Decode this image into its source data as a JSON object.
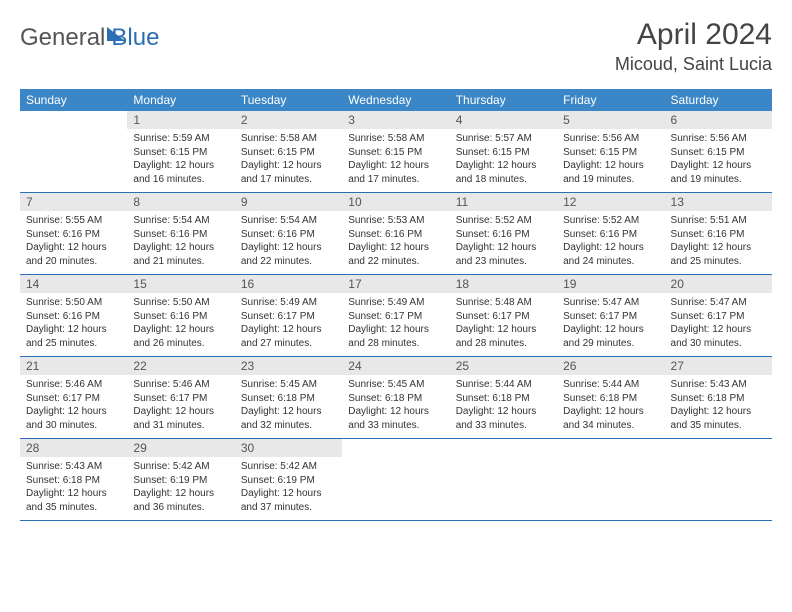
{
  "brand": {
    "part1": "General",
    "part2": "Blue"
  },
  "title": "April 2024",
  "location": "Micoud, Saint Lucia",
  "colors": {
    "header_bg": "#3b86c7",
    "header_text": "#ffffff",
    "daynum_bg": "#e8e8e8",
    "border": "#2a6fb5",
    "brand_accent": "#2a6fb5",
    "text": "#333333"
  },
  "weekdays": [
    "Sunday",
    "Monday",
    "Tuesday",
    "Wednesday",
    "Thursday",
    "Friday",
    "Saturday"
  ],
  "weeks": [
    [
      {
        "day": "",
        "sunrise": "",
        "sunset": "",
        "daylight": ""
      },
      {
        "day": "1",
        "sunrise": "Sunrise: 5:59 AM",
        "sunset": "Sunset: 6:15 PM",
        "daylight": "Daylight: 12 hours and 16 minutes."
      },
      {
        "day": "2",
        "sunrise": "Sunrise: 5:58 AM",
        "sunset": "Sunset: 6:15 PM",
        "daylight": "Daylight: 12 hours and 17 minutes."
      },
      {
        "day": "3",
        "sunrise": "Sunrise: 5:58 AM",
        "sunset": "Sunset: 6:15 PM",
        "daylight": "Daylight: 12 hours and 17 minutes."
      },
      {
        "day": "4",
        "sunrise": "Sunrise: 5:57 AM",
        "sunset": "Sunset: 6:15 PM",
        "daylight": "Daylight: 12 hours and 18 minutes."
      },
      {
        "day": "5",
        "sunrise": "Sunrise: 5:56 AM",
        "sunset": "Sunset: 6:15 PM",
        "daylight": "Daylight: 12 hours and 19 minutes."
      },
      {
        "day": "6",
        "sunrise": "Sunrise: 5:56 AM",
        "sunset": "Sunset: 6:15 PM",
        "daylight": "Daylight: 12 hours and 19 minutes."
      }
    ],
    [
      {
        "day": "7",
        "sunrise": "Sunrise: 5:55 AM",
        "sunset": "Sunset: 6:16 PM",
        "daylight": "Daylight: 12 hours and 20 minutes."
      },
      {
        "day": "8",
        "sunrise": "Sunrise: 5:54 AM",
        "sunset": "Sunset: 6:16 PM",
        "daylight": "Daylight: 12 hours and 21 minutes."
      },
      {
        "day": "9",
        "sunrise": "Sunrise: 5:54 AM",
        "sunset": "Sunset: 6:16 PM",
        "daylight": "Daylight: 12 hours and 22 minutes."
      },
      {
        "day": "10",
        "sunrise": "Sunrise: 5:53 AM",
        "sunset": "Sunset: 6:16 PM",
        "daylight": "Daylight: 12 hours and 22 minutes."
      },
      {
        "day": "11",
        "sunrise": "Sunrise: 5:52 AM",
        "sunset": "Sunset: 6:16 PM",
        "daylight": "Daylight: 12 hours and 23 minutes."
      },
      {
        "day": "12",
        "sunrise": "Sunrise: 5:52 AM",
        "sunset": "Sunset: 6:16 PM",
        "daylight": "Daylight: 12 hours and 24 minutes."
      },
      {
        "day": "13",
        "sunrise": "Sunrise: 5:51 AM",
        "sunset": "Sunset: 6:16 PM",
        "daylight": "Daylight: 12 hours and 25 minutes."
      }
    ],
    [
      {
        "day": "14",
        "sunrise": "Sunrise: 5:50 AM",
        "sunset": "Sunset: 6:16 PM",
        "daylight": "Daylight: 12 hours and 25 minutes."
      },
      {
        "day": "15",
        "sunrise": "Sunrise: 5:50 AM",
        "sunset": "Sunset: 6:16 PM",
        "daylight": "Daylight: 12 hours and 26 minutes."
      },
      {
        "day": "16",
        "sunrise": "Sunrise: 5:49 AM",
        "sunset": "Sunset: 6:17 PM",
        "daylight": "Daylight: 12 hours and 27 minutes."
      },
      {
        "day": "17",
        "sunrise": "Sunrise: 5:49 AM",
        "sunset": "Sunset: 6:17 PM",
        "daylight": "Daylight: 12 hours and 28 minutes."
      },
      {
        "day": "18",
        "sunrise": "Sunrise: 5:48 AM",
        "sunset": "Sunset: 6:17 PM",
        "daylight": "Daylight: 12 hours and 28 minutes."
      },
      {
        "day": "19",
        "sunrise": "Sunrise: 5:47 AM",
        "sunset": "Sunset: 6:17 PM",
        "daylight": "Daylight: 12 hours and 29 minutes."
      },
      {
        "day": "20",
        "sunrise": "Sunrise: 5:47 AM",
        "sunset": "Sunset: 6:17 PM",
        "daylight": "Daylight: 12 hours and 30 minutes."
      }
    ],
    [
      {
        "day": "21",
        "sunrise": "Sunrise: 5:46 AM",
        "sunset": "Sunset: 6:17 PM",
        "daylight": "Daylight: 12 hours and 30 minutes."
      },
      {
        "day": "22",
        "sunrise": "Sunrise: 5:46 AM",
        "sunset": "Sunset: 6:17 PM",
        "daylight": "Daylight: 12 hours and 31 minutes."
      },
      {
        "day": "23",
        "sunrise": "Sunrise: 5:45 AM",
        "sunset": "Sunset: 6:18 PM",
        "daylight": "Daylight: 12 hours and 32 minutes."
      },
      {
        "day": "24",
        "sunrise": "Sunrise: 5:45 AM",
        "sunset": "Sunset: 6:18 PM",
        "daylight": "Daylight: 12 hours and 33 minutes."
      },
      {
        "day": "25",
        "sunrise": "Sunrise: 5:44 AM",
        "sunset": "Sunset: 6:18 PM",
        "daylight": "Daylight: 12 hours and 33 minutes."
      },
      {
        "day": "26",
        "sunrise": "Sunrise: 5:44 AM",
        "sunset": "Sunset: 6:18 PM",
        "daylight": "Daylight: 12 hours and 34 minutes."
      },
      {
        "day": "27",
        "sunrise": "Sunrise: 5:43 AM",
        "sunset": "Sunset: 6:18 PM",
        "daylight": "Daylight: 12 hours and 35 minutes."
      }
    ],
    [
      {
        "day": "28",
        "sunrise": "Sunrise: 5:43 AM",
        "sunset": "Sunset: 6:18 PM",
        "daylight": "Daylight: 12 hours and 35 minutes."
      },
      {
        "day": "29",
        "sunrise": "Sunrise: 5:42 AM",
        "sunset": "Sunset: 6:19 PM",
        "daylight": "Daylight: 12 hours and 36 minutes."
      },
      {
        "day": "30",
        "sunrise": "Sunrise: 5:42 AM",
        "sunset": "Sunset: 6:19 PM",
        "daylight": "Daylight: 12 hours and 37 minutes."
      },
      {
        "day": "",
        "sunrise": "",
        "sunset": "",
        "daylight": ""
      },
      {
        "day": "",
        "sunrise": "",
        "sunset": "",
        "daylight": ""
      },
      {
        "day": "",
        "sunrise": "",
        "sunset": "",
        "daylight": ""
      },
      {
        "day": "",
        "sunrise": "",
        "sunset": "",
        "daylight": ""
      }
    ]
  ]
}
